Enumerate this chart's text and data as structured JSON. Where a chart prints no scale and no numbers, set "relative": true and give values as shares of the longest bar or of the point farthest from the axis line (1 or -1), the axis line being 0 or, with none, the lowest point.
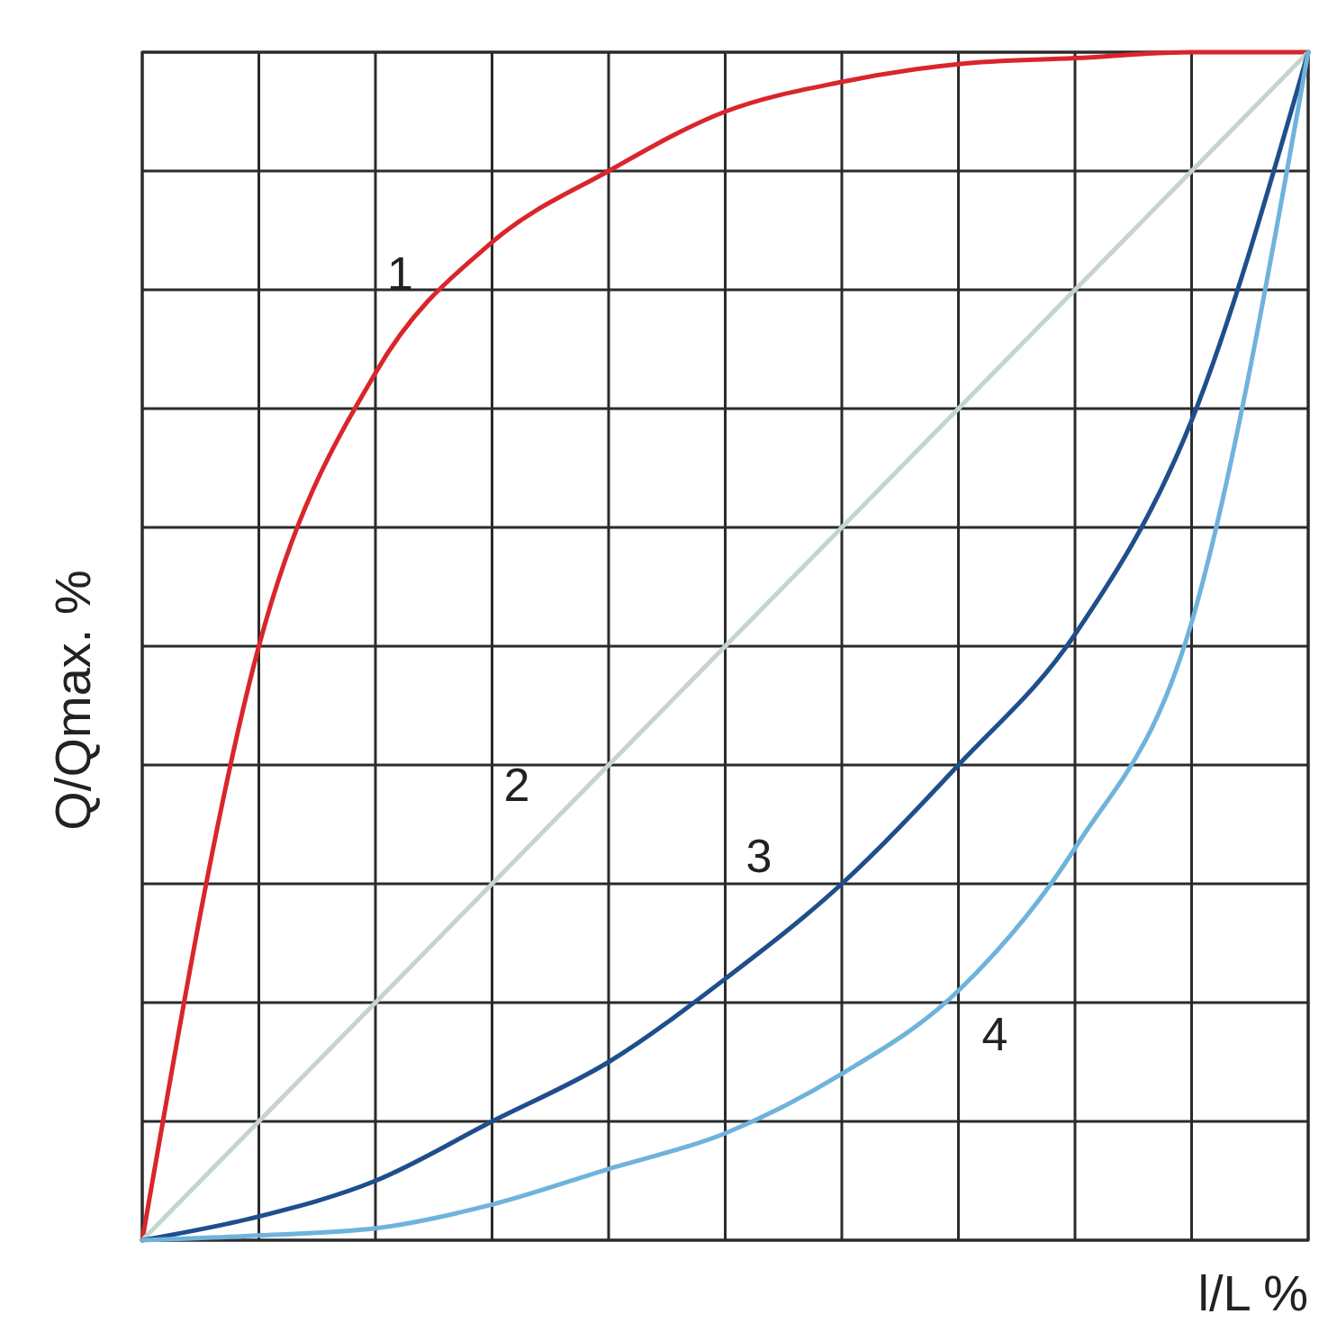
{
  "chart_data": {
    "type": "line",
    "relative": true,
    "xlabel": "l/L %",
    "ylabel": "Q/Qmax. %",
    "grid": true,
    "legend": false,
    "marker": "none",
    "line_style": "solid",
    "categories": [
      null,
      null,
      null,
      null,
      null,
      null,
      null,
      null,
      null,
      null,
      null
    ],
    "series": [
      {
        "name": "1",
        "color": "#d9262b",
        "values": [
          0,
          0.5,
          0.73,
          0.84,
          0.9,
          0.95,
          0.975,
          0.99,
          0.995,
          1,
          1
        ]
      },
      {
        "name": "2",
        "color": "#c4d6cc",
        "values": [
          0,
          0.1,
          0.2,
          0.3,
          0.4,
          0.5,
          0.6,
          0.7,
          0.8,
          0.9,
          1
        ]
      },
      {
        "name": "3",
        "color": "#1f4e8c",
        "values": [
          0,
          0.02,
          0.05,
          0.1,
          0.15,
          0.22,
          0.3,
          0.4,
          0.51,
          0.69,
          1
        ]
      },
      {
        "name": "4",
        "color": "#6fb3dc",
        "values": [
          0,
          0.004,
          0.01,
          0.03,
          0.06,
          0.09,
          0.14,
          0.21,
          0.33,
          0.52,
          1
        ]
      }
    ]
  }
}
